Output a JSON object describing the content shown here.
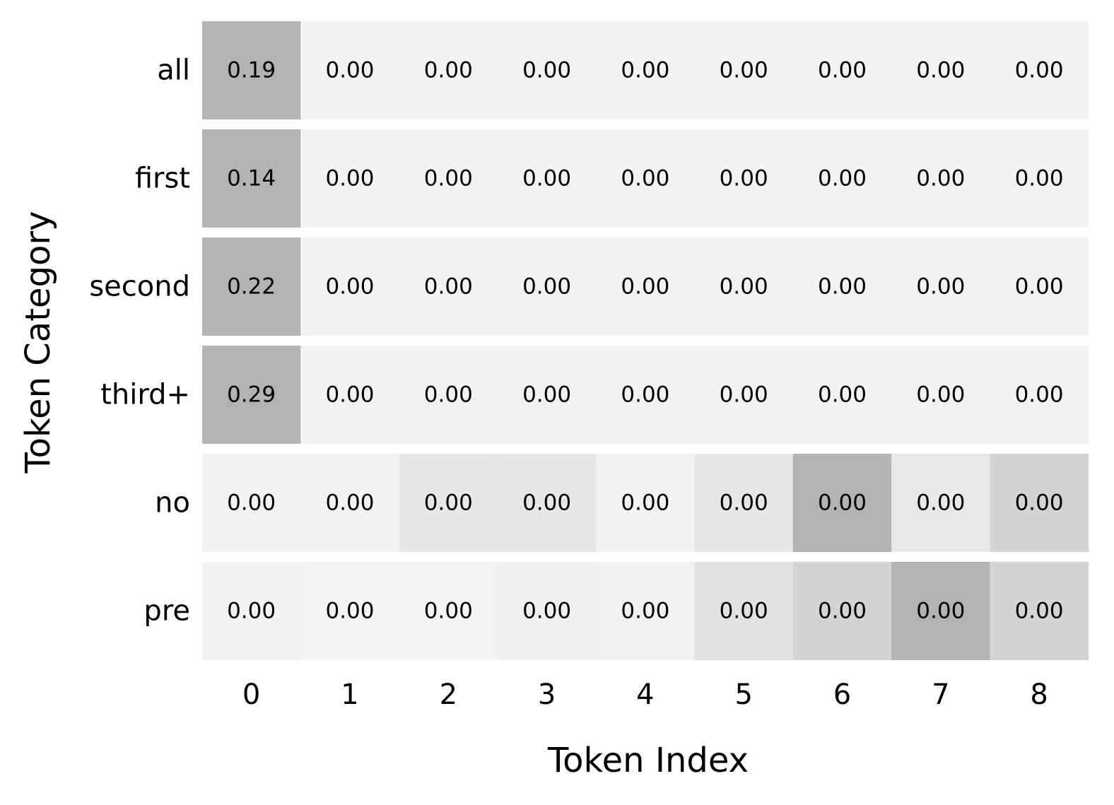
{
  "chart_data": {
    "type": "heatmap",
    "title": "",
    "xlabel": "Token Index",
    "ylabel": "Token Category",
    "x_categories": [
      "0",
      "1",
      "2",
      "3",
      "4",
      "5",
      "6",
      "7",
      "8"
    ],
    "y_categories": [
      "all",
      "first",
      "second",
      "third+",
      "no",
      "pre"
    ],
    "layout_note": "rows are grouped: each row is rendered as its own band separated by a white gap",
    "legend": "none",
    "grid": false,
    "values": [
      [
        "0.19",
        "0.00",
        "0.00",
        "0.00",
        "0.00",
        "0.00",
        "0.00",
        "0.00",
        "0.00"
      ],
      [
        "0.14",
        "0.00",
        "0.00",
        "0.00",
        "0.00",
        "0.00",
        "0.00",
        "0.00",
        "0.00"
      ],
      [
        "0.22",
        "0.00",
        "0.00",
        "0.00",
        "0.00",
        "0.00",
        "0.00",
        "0.00",
        "0.00"
      ],
      [
        "0.29",
        "0.00",
        "0.00",
        "0.00",
        "0.00",
        "0.00",
        "0.00",
        "0.00",
        "0.00"
      ],
      [
        "0.00",
        "0.00",
        "0.00",
        "0.00",
        "0.00",
        "0.00",
        "0.00",
        "0.00",
        "0.00"
      ],
      [
        "0.00",
        "0.00",
        "0.00",
        "0.00",
        "0.00",
        "0.00",
        "0.00",
        "0.00",
        "0.00"
      ]
    ],
    "cell_colors": [
      [
        "#b3b3b3",
        "#f2f2f2",
        "#f2f2f2",
        "#f2f2f2",
        "#f2f2f2",
        "#f2f2f2",
        "#f2f2f2",
        "#f2f2f2",
        "#f2f2f2"
      ],
      [
        "#b3b3b3",
        "#f2f2f2",
        "#f2f2f2",
        "#f2f2f2",
        "#f2f2f2",
        "#f2f2f2",
        "#f2f2f2",
        "#f2f2f2",
        "#f2f2f2"
      ],
      [
        "#b3b3b3",
        "#f2f2f2",
        "#f2f2f2",
        "#f2f2f2",
        "#f2f2f2",
        "#f2f2f2",
        "#f2f2f2",
        "#f2f2f2",
        "#f2f2f2"
      ],
      [
        "#b3b3b3",
        "#f2f2f2",
        "#f2f2f2",
        "#f2f2f2",
        "#f2f2f2",
        "#f2f2f2",
        "#f2f2f2",
        "#f2f2f2",
        "#f2f2f2"
      ],
      [
        "#f2f2f2",
        "#f2f2f2",
        "#e7e7e7",
        "#e7e7e7",
        "#f2f2f2",
        "#e6e6e6",
        "#b3b3b3",
        "#e8e8e8",
        "#d4d4d4"
      ],
      [
        "#f2f2f2",
        "#f3f3f3",
        "#f3f3f3",
        "#f0f0f0",
        "#f1f1f1",
        "#e2e2e2",
        "#d4d4d4",
        "#b3b3b3",
        "#d4d4d4"
      ]
    ],
    "colors": {
      "background": "#ffffff",
      "text": "#000000"
    }
  }
}
